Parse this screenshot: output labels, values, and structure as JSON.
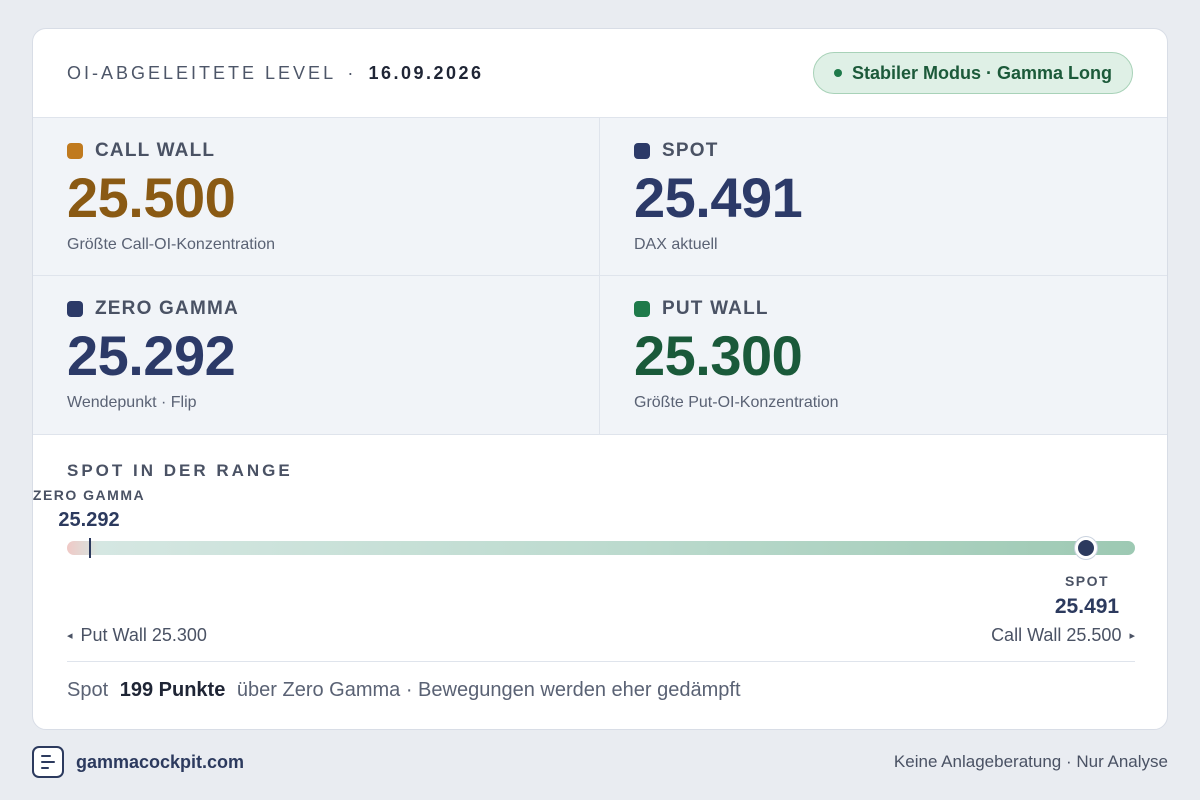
{
  "header": {
    "title": "OI-ABGELEITETE LEVEL",
    "separator": "·",
    "date": "16.09.2026",
    "badge": "Stabiler Modus · Gamma Long"
  },
  "levels": {
    "call_wall": {
      "label": "CALL WALL",
      "value": "25.500",
      "sub": "Größte Call-OI-Konzentration",
      "color": "#8a5a14",
      "swatch": "#c07a1e"
    },
    "spot": {
      "label": "SPOT",
      "value": "25.491",
      "sub": "DAX aktuell",
      "color": "#2c3a68",
      "swatch": "#2c3a68"
    },
    "zero_gamma": {
      "label": "ZERO GAMMA",
      "value": "25.292",
      "sub": "Wendepunkt · Flip",
      "color": "#2c3a68",
      "swatch": "#2c3a68"
    },
    "put_wall": {
      "label": "PUT WALL",
      "value": "25.300",
      "sub": "Größte Put-OI-Konzentration",
      "color": "#1a5a3a",
      "swatch": "#1e7a4a"
    }
  },
  "range": {
    "title": "SPOT IN DER RANGE",
    "zero_gamma_label": "ZERO GAMMA",
    "zero_gamma_value": "25.292",
    "spot_label": "SPOT",
    "spot_value": "25.491",
    "left_end": "Put Wall 25.300",
    "right_end": "Call Wall 25.500",
    "left_arrow": "◂",
    "right_arrow": "▸"
  },
  "summary": {
    "prefix": "Spot",
    "emphasis": "199 Punkte",
    "suffix": "über Zero Gamma · Bewegungen werden eher gedämpft"
  },
  "footer": {
    "brand": "gammacockpit.com",
    "disclaimer": "Keine Anlageberatung · Nur Analyse"
  }
}
